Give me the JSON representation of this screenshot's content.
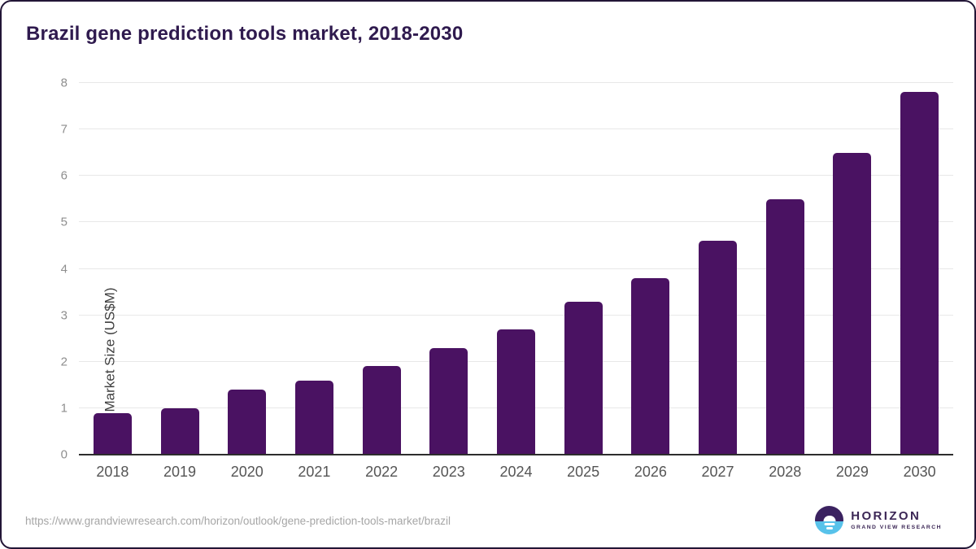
{
  "title": "Brazil gene prediction tools market, 2018-2030",
  "chart_data": {
    "type": "bar",
    "title": "Brazil gene prediction tools market, 2018-2030",
    "categories": [
      "2018",
      "2019",
      "2020",
      "2021",
      "2022",
      "2023",
      "2024",
      "2025",
      "2026",
      "2027",
      "2028",
      "2029",
      "2030"
    ],
    "values": [
      0.9,
      1.0,
      1.4,
      1.6,
      1.9,
      2.3,
      2.7,
      3.3,
      3.8,
      4.6,
      5.5,
      6.5,
      7.8
    ],
    "xlabel": "",
    "ylabel": "Market Size (US$M)",
    "ylim": [
      0,
      8
    ],
    "yticks": [
      0,
      1,
      2,
      3,
      4,
      5,
      6,
      7,
      8
    ],
    "grid": true,
    "legend_position": "none",
    "bar_color": "#4a1262"
  },
  "colors": {
    "bar": "#4a1262",
    "title_text": "#2f1a4e",
    "gridline": "#e8e8e8",
    "baseline": "#2d2d2d",
    "tick_text": "#8e8e8e",
    "x_label_text": "#555555",
    "url_text": "#a6a6a6",
    "logo_purple": "#3b2260",
    "logo_blue": "#58c2ea",
    "card_border": "#221536"
  },
  "footer": {
    "source_url": "https://www.grandviewresearch.com/horizon/outlook/gene-prediction-tools-market/brazil",
    "logo": {
      "name": "HORIZON",
      "subtitle": "GRAND VIEW RESEARCH"
    }
  }
}
